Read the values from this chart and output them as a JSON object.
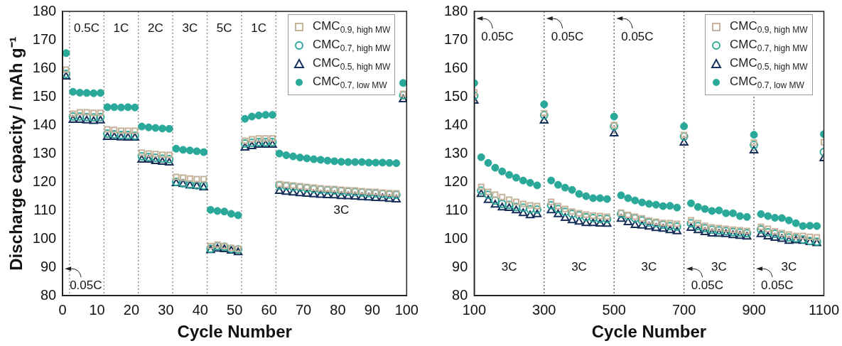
{
  "chart_data": [
    {
      "type": "scatter",
      "xlabel": "Cycle Number",
      "ylabel": "Discharge capacity / mAh g⁻¹",
      "legend": "top right",
      "grid": false,
      "x": [
        1,
        3,
        5,
        7,
        9,
        11,
        13,
        15,
        17,
        19,
        21,
        23,
        25,
        27,
        29,
        31,
        33,
        35,
        37,
        39,
        41,
        43,
        45,
        47,
        49,
        51,
        53,
        55,
        57,
        59,
        61,
        63,
        65,
        67,
        69,
        71,
        73,
        75,
        77,
        79,
        81,
        83,
        85,
        87,
        89,
        91,
        93,
        95,
        97,
        99
      ],
      "xlim": [
        0,
        100
      ],
      "xticks": [
        0,
        10,
        20,
        30,
        40,
        50,
        60,
        70,
        80,
        90,
        100
      ],
      "ylim": [
        80,
        180
      ],
      "yticks": [
        80,
        90,
        100,
        110,
        120,
        130,
        140,
        150,
        160,
        170,
        180
      ],
      "series": [
        {
          "name": "CMC$_{0.9, high MW}$",
          "color": "#c4b29a",
          "marker": "square-open",
          "values": [
            159.5,
            144,
            144.5,
            144.5,
            144.3,
            144.3,
            138.5,
            138.3,
            138,
            138,
            138,
            130.3,
            130,
            129.8,
            129.6,
            129.5,
            121.8,
            121.5,
            121.2,
            121,
            121,
            97.5,
            98,
            97.5,
            96.8,
            96.5,
            134.5,
            135,
            135.3,
            135.3,
            135.3,
            119.3,
            119,
            118.8,
            118.5,
            118.3,
            118,
            117.8,
            117.6,
            117.5,
            117.3,
            117.1,
            117,
            116.8,
            116.6,
            116.5,
            116.3,
            116.1,
            116,
            151
          ]
        },
        {
          "name": "CMC$_{0.7, high MW}$",
          "color": "#2aa99a",
          "marker": "circle-open",
          "values": [
            158,
            143,
            143,
            142.8,
            142.7,
            142.8,
            137,
            136.8,
            136.5,
            136.5,
            136.3,
            129,
            128.8,
            128.5,
            128.2,
            128,
            120,
            119.5,
            119,
            118.8,
            118.7,
            96.5,
            97.5,
            97.2,
            96.5,
            96.3,
            133.5,
            133.8,
            134,
            134,
            134,
            118.8,
            118.5,
            118.2,
            118,
            117.8,
            117.5,
            117.3,
            117.1,
            117,
            116.8,
            116.6,
            116.5,
            116.3,
            116.1,
            116,
            115.8,
            115.6,
            115.5,
            150.5
          ]
        },
        {
          "name": "CMC$_{0.5, high MW}$",
          "color": "#17305a",
          "marker": "triangle-open",
          "values": [
            157,
            141.8,
            141.8,
            141.6,
            141.4,
            141.6,
            135.8,
            135.8,
            135.6,
            135.5,
            135.5,
            127.8,
            127.8,
            127.3,
            127,
            126.8,
            119.5,
            119.2,
            118.7,
            118.5,
            118,
            96,
            96.5,
            96.3,
            95.8,
            95.2,
            132,
            132.5,
            133,
            133,
            133,
            116.8,
            116.5,
            116.2,
            116,
            115.8,
            115.6,
            115.4,
            115.3,
            115.2,
            115,
            114.9,
            114.8,
            114.6,
            114.5,
            114.3,
            114.2,
            114,
            113.8,
            149
          ]
        },
        {
          "name": "CMC$_{0.7, low MW}$",
          "color": "#2aa99a",
          "marker": "circle",
          "values": [
            165.3,
            151.7,
            151.4,
            151.3,
            151.2,
            151.3,
            146.3,
            146.3,
            146.2,
            146.3,
            146.2,
            139.5,
            139.2,
            139,
            138.8,
            138.7,
            131.7,
            131.3,
            131.1,
            130.8,
            130.5,
            110.2,
            109.8,
            109.6,
            108.8,
            108.3,
            142.2,
            143,
            143.4,
            143.6,
            143.6,
            130,
            129.4,
            129,
            128.6,
            128.3,
            128,
            127.8,
            127.5,
            127.3,
            127.1,
            127,
            127,
            127,
            126.8,
            126.8,
            126.8,
            126.7,
            126.6,
            154.8
          ]
        }
      ],
      "ref_lines": [
        {
          "axis": "x",
          "value": 2,
          "line_style": "dotted",
          "color": "#888888"
        },
        {
          "axis": "x",
          "value": 12,
          "line_style": "dotted",
          "color": "#888888"
        },
        {
          "axis": "x",
          "value": 22,
          "line_style": "dotted",
          "color": "#888888"
        },
        {
          "axis": "x",
          "value": 32,
          "line_style": "dotted",
          "color": "#888888"
        },
        {
          "axis": "x",
          "value": 42,
          "line_style": "dotted",
          "color": "#888888"
        },
        {
          "axis": "x",
          "value": 52,
          "line_style": "dotted",
          "color": "#888888"
        },
        {
          "axis": "x",
          "value": 62,
          "line_style": "dotted",
          "color": "#888888"
        }
      ],
      "annotations": [
        "0.05C",
        "0.5C",
        "1C",
        "2C",
        "3C",
        "5C",
        "1C",
        "3C"
      ]
    },
    {
      "type": "scatter",
      "xlabel": "Cycle Number",
      "legend": "top right",
      "grid": false,
      "x": [
        100,
        120,
        140,
        160,
        180,
        200,
        220,
        240,
        260,
        280,
        300,
        320,
        340,
        360,
        380,
        400,
        420,
        440,
        460,
        480,
        500,
        520,
        540,
        560,
        580,
        600,
        620,
        640,
        660,
        680,
        700,
        720,
        740,
        760,
        780,
        800,
        820,
        840,
        860,
        880,
        900,
        920,
        940,
        960,
        980,
        1000,
        1020,
        1040,
        1060,
        1080,
        1100
      ],
      "xlim": [
        100,
        1100
      ],
      "xticks": [
        100,
        300,
        500,
        700,
        900,
        1100
      ],
      "ylim": [
        80,
        180
      ],
      "yticks": [
        80,
        90,
        100,
        110,
        120,
        130,
        140,
        150,
        160,
        170,
        180
      ],
      "series": [
        {
          "name": "CMC$_{0.9, high MW}$",
          "color": "#c4b29a",
          "marker": "square-open",
          "values": [
            151.5,
            118.3,
            116.5,
            115.5,
            114.7,
            113.8,
            113,
            112.3,
            111.8,
            111.5,
            144.2,
            113,
            111.5,
            110.5,
            109.6,
            109,
            108.5,
            108.2,
            108,
            107.8,
            140,
            109.2,
            108.4,
            107.8,
            107.2,
            106.4,
            106,
            105.6,
            105.5,
            105.3,
            136.5,
            106.5,
            105.5,
            104.5,
            104,
            103.8,
            103.5,
            103.2,
            103,
            102.8,
            133.8,
            104.2,
            103.5,
            102.6,
            102,
            101.5,
            101,
            101,
            100.7,
            100.5,
            134
          ]
        },
        {
          "name": "CMC$_{0.7, high MW}$",
          "color": "#2aa99a",
          "marker": "circle-open",
          "values": [
            150.3,
            117,
            115.5,
            113.5,
            112.3,
            112,
            111.2,
            111,
            110.4,
            110.3,
            143.5,
            111.8,
            110.5,
            109.5,
            108.8,
            108.3,
            107.6,
            107.3,
            107,
            107,
            139.6,
            108.8,
            108,
            107.2,
            106.5,
            105.8,
            105.5,
            105,
            104.5,
            104.3,
            136,
            105.5,
            104.5,
            103.7,
            103.2,
            103,
            102.7,
            102.4,
            102.2,
            102,
            133,
            103.3,
            102.3,
            101.8,
            101.2,
            100.5,
            100.2,
            99.8,
            99.2,
            99,
            130.5
          ]
        },
        {
          "name": "CMC$_{0.5, high MW}$",
          "color": "#17305a",
          "marker": "triangle-open",
          "values": [
            148.5,
            115.7,
            113.6,
            112,
            111,
            110.8,
            110,
            109,
            108.2,
            108.6,
            141.5,
            110,
            108.6,
            107.3,
            106.5,
            106,
            105.5,
            105.5,
            105.3,
            105.2,
            137,
            107,
            105.8,
            104.8,
            104.6,
            104.2,
            103.7,
            103.5,
            103,
            102.6,
            133.8,
            103.8,
            103,
            102.3,
            101.8,
            101.7,
            101.6,
            101.2,
            101,
            100.7,
            131,
            101.6,
            100.8,
            100.3,
            99.9,
            99.2,
            99.4,
            99.2,
            98.8,
            98.4,
            128.3
          ]
        },
        {
          "name": "CMC$_{0.7, low MW}$",
          "color": "#2aa99a",
          "marker": "circle",
          "values": [
            154.8,
            128.7,
            126.7,
            125,
            123.7,
            122.5,
            121.5,
            120.5,
            119.7,
            118.8,
            147.3,
            120.5,
            119,
            118,
            117.2,
            115.8,
            115,
            114.3,
            114.3,
            114,
            143,
            115.3,
            114.3,
            113.5,
            112.8,
            112.3,
            112,
            111.5,
            111.6,
            111,
            139.6,
            112.5,
            111.2,
            110.5,
            109.8,
            110,
            109,
            109,
            108,
            107.7,
            136.6,
            108.7,
            108,
            107.4,
            107.3,
            106.5,
            105.5,
            104.5,
            104.6,
            104.5,
            136.8
          ]
        }
      ],
      "ref_lines": [
        {
          "axis": "x",
          "value": 300,
          "line_style": "dotted",
          "color": "#555555"
        },
        {
          "axis": "x",
          "value": 500,
          "line_style": "dotted",
          "color": "#555555"
        },
        {
          "axis": "x",
          "value": 700,
          "line_style": "dotted",
          "color": "#555555"
        },
        {
          "axis": "x",
          "value": 900,
          "line_style": "dotted",
          "color": "#555555"
        }
      ],
      "annotations": [
        "0.05C",
        "3C",
        "0.05C",
        "3C",
        "0.05C",
        "3C",
        "0.05C",
        "3C",
        "0.05C",
        "3C"
      ]
    }
  ]
}
